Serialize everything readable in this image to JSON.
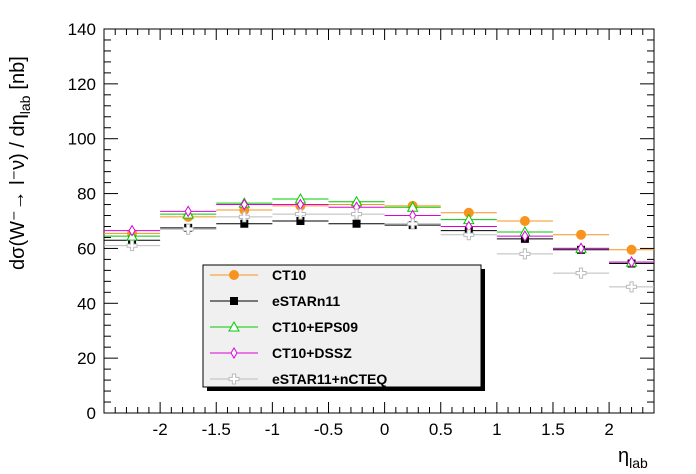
{
  "chart_data": {
    "type": "scatter",
    "xlabel": "η",
    "xlabel_sub": "lab",
    "ylabel": "dσ(W⁻→ l⁻ν) / dη",
    "ylabel_sub": "lab",
    "ylabel_unit": "[nb]",
    "xlim": [
      -2.5,
      2.4
    ],
    "ylim": [
      0,
      140
    ],
    "xticks": [
      -2,
      -1.5,
      -1,
      -0.5,
      0,
      0.5,
      1,
      1.5,
      2
    ],
    "xtick_labels": [
      "-2",
      "-1.5",
      "-1",
      "-0.5",
      "0",
      "0.5",
      "1",
      "1.5",
      "2"
    ],
    "yticks": [
      0,
      20,
      40,
      60,
      80,
      100,
      120,
      140
    ],
    "ytick_labels": [
      "0",
      "20",
      "40",
      "60",
      "80",
      "100",
      "120",
      "140"
    ],
    "grid": false,
    "legend_position": "bottom-center",
    "bin_edges": [
      -2.5,
      -2.0,
      -1.5,
      -1.0,
      -0.5,
      0.0,
      0.5,
      1.0,
      1.5,
      2.0,
      2.4
    ],
    "series": [
      {
        "name": "CT10",
        "color": "#f7941d",
        "marker": "filled-circle",
        "x": [
          -2.25,
          -1.75,
          -1.25,
          -0.75,
          -0.25,
          0.25,
          0.75,
          1.25,
          1.75,
          2.2
        ],
        "y": [
          65.5,
          71.5,
          74,
          75.5,
          76,
          75.5,
          73,
          70,
          65,
          59.5
        ]
      },
      {
        "name": "eSTARn11",
        "color": "#000000",
        "marker": "filled-square",
        "x": [
          -2.25,
          -1.75,
          -1.25,
          -0.75,
          -0.25,
          0.25,
          0.75,
          1.25,
          1.75,
          2.2
        ],
        "y": [
          63,
          67.5,
          69,
          70,
          69,
          68.5,
          66.5,
          63.5,
          59.5,
          54.5
        ]
      },
      {
        "name": "CT10+EPS09",
        "color": "#00cc00",
        "marker": "open-triangle",
        "x": [
          -2.25,
          -1.75,
          -1.25,
          -0.75,
          -0.25,
          0.25,
          0.75,
          1.25,
          1.75,
          2.2
        ],
        "y": [
          64.5,
          72.5,
          76.5,
          78,
          77,
          75,
          70.5,
          66,
          60,
          55
        ]
      },
      {
        "name": "CT10+DSSZ",
        "color": "#dd00dd",
        "marker": "open-diamond",
        "x": [
          -2.25,
          -1.75,
          -1.25,
          -0.75,
          -0.25,
          0.25,
          0.75,
          1.25,
          1.75,
          2.2
        ],
        "y": [
          66.5,
          73.5,
          76,
          76,
          75,
          72,
          68,
          64.5,
          60,
          55
        ]
      },
      {
        "name": "eSTAR11+nCTEQ",
        "color": "#bbbbbb",
        "marker": "open-cross",
        "x": [
          -2.25,
          -1.75,
          -1.25,
          -0.75,
          -0.25,
          0.25,
          0.75,
          1.25,
          1.75,
          2.2
        ],
        "y": [
          61,
          67,
          71.5,
          72.5,
          72.5,
          69,
          65,
          58,
          51,
          46
        ]
      }
    ]
  }
}
